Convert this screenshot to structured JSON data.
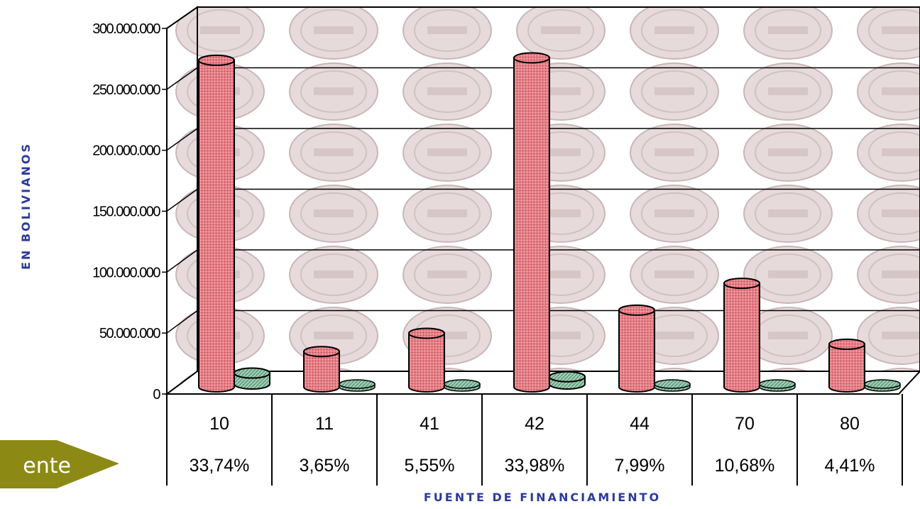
{
  "chart_data": {
    "type": "bar",
    "xlabel": "FUENTE DE FINANCIAMIENTO",
    "ylabel": "EN BOLIVIANOS",
    "ylim": [
      0,
      300000000
    ],
    "yticks": [
      "0",
      "50.000.000",
      "100.000.000",
      "150.000.000",
      "200.000.000",
      "250.000.000",
      "300.000.000"
    ],
    "categories": [
      "10",
      "11",
      "41",
      "42",
      "44",
      "70",
      "80"
    ],
    "percent_labels": [
      "33,74%",
      "3,65%",
      "5,55%",
      "33,98%",
      "7,99%",
      "10,68%",
      "4,41%"
    ],
    "grid": true,
    "series": [
      {
        "values": [
          268000000,
          29000000,
          44000000,
          270000000,
          63000000,
          85000000,
          35000000
        ],
        "color": "#e0707a"
      },
      {
        "values": [
          9000000,
          0,
          0,
          6000000,
          0,
          0,
          0
        ],
        "color": "#8cc4a8"
      }
    ]
  },
  "button": {
    "label": "ente",
    "color": "#8c8a14"
  }
}
